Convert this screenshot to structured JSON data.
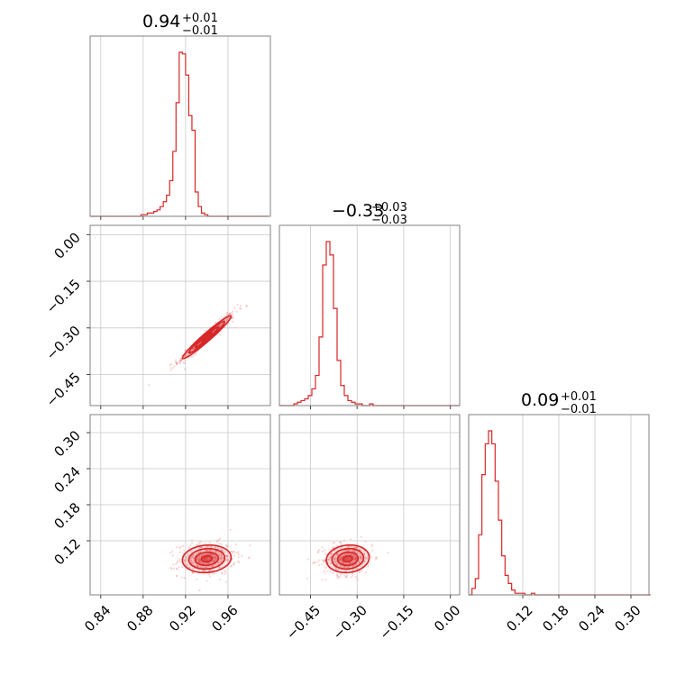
{
  "chart_data": {
    "type": "corner",
    "color": "#d62728",
    "parameters": [
      {
        "titles": {
          "median": "0.94",
          "upper": "+0.01",
          "lower": "−0.01"
        },
        "range": [
          0.83,
          1.0
        ],
        "ticks": [
          0.84,
          0.88,
          0.92,
          0.96
        ],
        "tick_labels": [
          "0.84",
          "0.88",
          "0.92",
          "0.96"
        ],
        "hist": {
          "edges_start": 0.83,
          "bin_width": 0.003,
          "counts": [
            0,
            0,
            0,
            0,
            0,
            0,
            0,
            0,
            0,
            0,
            0,
            0,
            0,
            0,
            0,
            0,
            1,
            1,
            2,
            2,
            3,
            4,
            6,
            9,
            13,
            22,
            40,
            70,
            101,
            100,
            87,
            62,
            53,
            15,
            6,
            2,
            1,
            0,
            0,
            0,
            0,
            0,
            0,
            0,
            0,
            0,
            0,
            0,
            0,
            0,
            0,
            0,
            0,
            0,
            0,
            0
          ]
        }
      },
      {
        "titles": {
          "median": "−0.33",
          "upper": "+0.03",
          "lower": "−0.03"
        },
        "range": [
          -0.55,
          0.03
        ],
        "ticks": [
          -0.45,
          -0.3,
          -0.15,
          0.0
        ],
        "tick_labels": [
          "−0.45",
          "−0.30",
          "−0.15",
          "0.00"
        ],
        "hist": {
          "edges_start": -0.55,
          "bin_width": 0.0116,
          "counts": [
            0,
            0,
            0,
            0,
            1,
            2,
            3,
            4,
            6,
            10,
            18,
            41,
            84,
            98,
            90,
            58,
            27,
            12,
            6,
            3,
            2,
            1,
            1,
            0,
            0,
            1,
            0,
            0,
            0,
            0,
            0,
            0,
            0,
            0,
            0,
            0,
            0,
            0,
            0,
            0,
            0,
            0,
            0,
            0,
            0,
            0,
            0,
            0,
            0,
            0
          ]
        }
      },
      {
        "titles": {
          "median": "0.09",
          "upper": "+0.01",
          "lower": "−0.01"
        },
        "range": [
          0.03,
          0.33
        ],
        "ticks": [
          0.12,
          0.18,
          0.24,
          0.3
        ],
        "tick_labels": [
          "0.12",
          "0.18",
          "0.24",
          "0.30"
        ],
        "hist": {
          "edges_start": 0.03,
          "bin_width": 0.0055,
          "counts": [
            0,
            4,
            10,
            37,
            74,
            93,
            101,
            93,
            70,
            46,
            24,
            12,
            7,
            3,
            1,
            1,
            1,
            0,
            0,
            1,
            0,
            0,
            0,
            0,
            0,
            0,
            0,
            0,
            0,
            0,
            0,
            0,
            0,
            0,
            0,
            0,
            0,
            0,
            0,
            0,
            0,
            0,
            0,
            0,
            0,
            0,
            0,
            0,
            0,
            0,
            0,
            0,
            0,
            0,
            0
          ]
        }
      }
    ],
    "y_axes": [
      {
        "row": 1,
        "ticks": [
          0.0,
          -0.15,
          -0.3,
          -0.45
        ],
        "tick_labels": [
          "0.00",
          "−0.15",
          "−0.30",
          "−0.45"
        ]
      },
      {
        "row": 2,
        "ticks": [
          0.3,
          0.24,
          0.18,
          0.12
        ],
        "tick_labels": [
          "0.30",
          "0.24",
          "0.18",
          "0.12"
        ]
      }
    ],
    "pairs": [
      {
        "x": 0,
        "y": 1,
        "center": [
          0.94,
          -0.33
        ],
        "spread": [
          0.01,
          0.03
        ],
        "correlation": 0.97
      },
      {
        "x": 0,
        "y": 2,
        "center": [
          0.94,
          0.09
        ],
        "spread": [
          0.01,
          0.01
        ],
        "correlation": 0.1
      },
      {
        "x": 1,
        "y": 2,
        "center": [
          -0.33,
          0.09
        ],
        "spread": [
          0.03,
          0.01
        ],
        "correlation": 0.1
      }
    ],
    "grid": true
  }
}
